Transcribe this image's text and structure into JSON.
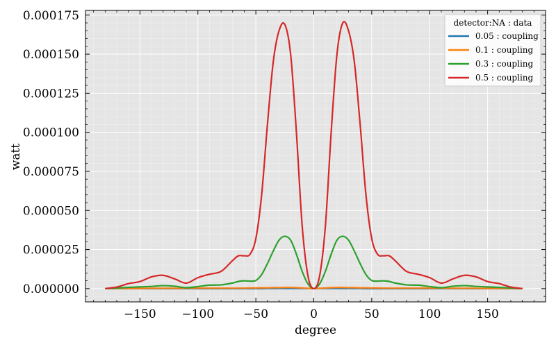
{
  "chart_data": {
    "type": "line",
    "title": "",
    "xlabel": "degree",
    "ylabel": "watt",
    "xlim": [
      -197,
      200
    ],
    "ylim": [
      -8.5e-06,
      0.000178
    ],
    "grid": true,
    "x_ticks": [
      -150,
      -100,
      -50,
      0,
      50,
      100,
      150
    ],
    "x_tick_labels": [
      "−150",
      "−100",
      "−50",
      "0",
      "50",
      "100",
      "150"
    ],
    "y_ticks": [
      0,
      2.5e-05,
      5e-05,
      7.5e-05,
      0.0001,
      0.000125,
      0.00015,
      0.000175
    ],
    "y_tick_labels": [
      "0.000000",
      "0.000025",
      "0.000050",
      "0.000075",
      "0.000100",
      "0.000125",
      "0.000150",
      "0.000175"
    ],
    "legend": {
      "title": "detector:NA : data",
      "position": "top-right"
    },
    "x": [
      -180,
      -170,
      -160,
      -150,
      -140,
      -130,
      -120,
      -110,
      -100,
      -90,
      -80,
      -70,
      -65,
      -60,
      -55,
      -50,
      -45,
      -40,
      -35,
      -30,
      -25,
      -20,
      -15,
      -10,
      -5,
      0,
      5,
      10,
      15,
      20,
      25,
      30,
      35,
      40,
      45,
      50,
      55,
      60,
      65,
      70,
      80,
      90,
      100,
      110,
      120,
      130,
      140,
      150,
      160,
      170,
      180
    ],
    "series": [
      {
        "name": "0.05 : coupling",
        "color": "#1f77b4",
        "values": [
          0,
          0,
          0,
          0,
          0,
          0,
          0,
          0,
          0,
          0,
          0,
          0,
          0,
          0,
          0,
          0,
          0,
          1e-07,
          1e-07,
          1e-07,
          1e-07,
          1e-07,
          1e-07,
          1e-07,
          1e-07,
          0,
          1e-07,
          1e-07,
          1e-07,
          1e-07,
          1e-07,
          1e-07,
          1e-07,
          1e-07,
          0,
          0,
          0,
          0,
          0,
          0,
          0,
          0,
          0,
          0,
          0,
          0,
          0,
          0,
          0,
          0,
          0
        ]
      },
      {
        "name": "0.1 : coupling",
        "color": "#ff7f0e",
        "values": [
          0,
          1e-07,
          1e-07,
          1e-07,
          2e-07,
          2e-07,
          2e-07,
          2e-07,
          3e-07,
          3e-07,
          3e-07,
          3e-07,
          3e-07,
          3e-07,
          4e-07,
          4e-07,
          5e-07,
          5e-07,
          6e-07,
          6e-07,
          7e-07,
          7e-07,
          6e-07,
          4e-07,
          2e-07,
          0,
          2e-07,
          4e-07,
          6e-07,
          7e-07,
          7e-07,
          6e-07,
          6e-07,
          5e-07,
          5e-07,
          4e-07,
          4e-07,
          3e-07,
          3e-07,
          3e-07,
          3e-07,
          3e-07,
          3e-07,
          2e-07,
          2e-07,
          2e-07,
          2e-07,
          1e-07,
          1e-07,
          1e-07,
          0
        ]
      },
      {
        "name": "0.3 : coupling",
        "color": "#2ca02c",
        "values": [
          0,
          4e-07,
          8e-07,
          1.1e-06,
          1.4e-06,
          1.9e-06,
          1.5e-06,
          6e-07,
          1.3e-06,
          2.2e-06,
          2.4e-06,
          3.6e-06,
          4.6e-06,
          5e-06,
          4.8e-06,
          5.2e-06,
          9e-06,
          1.6e-05,
          2.4e-05,
          3.1e-05,
          3.35e-05,
          3.1e-05,
          2.2e-05,
          1.1e-05,
          3e-06,
          0,
          3e-06,
          1.1e-05,
          2.2e-05,
          3.1e-05,
          3.35e-05,
          3.1e-05,
          2.4e-05,
          1.6e-05,
          9e-06,
          5.2e-06,
          4.8e-06,
          5e-06,
          4.6e-06,
          3.6e-06,
          2.4e-06,
          2.2e-06,
          1.3e-06,
          6e-07,
          1.5e-06,
          1.9e-06,
          1.4e-06,
          1.1e-06,
          8e-07,
          4e-07,
          0
        ]
      },
      {
        "name": "0.5 : coupling",
        "color": "#d62728",
        "values": [
          0,
          1e-06,
          3.2e-06,
          4.5e-06,
          7.5e-06,
          8.5e-06,
          6.2e-06,
          3.5e-06,
          7e-06,
          9.2e-06,
          1.1e-05,
          1.8e-05,
          2.1e-05,
          2.1e-05,
          2.2e-05,
          3.2e-05,
          6e-05,
          0.000105,
          0.000145,
          0.000165,
          0.000169,
          0.00015,
          0.0001,
          4e-05,
          8e-06,
          0,
          8e-06,
          4e-05,
          0.0001,
          0.00015,
          0.00017,
          0.000165,
          0.000145,
          0.000105,
          6e-05,
          3.2e-05,
          2.2e-05,
          2.1e-05,
          2.1e-05,
          1.8e-05,
          1.1e-05,
          9.2e-06,
          7e-06,
          3.5e-06,
          6.2e-06,
          8.5e-06,
          7.5e-06,
          4.5e-06,
          3.2e-06,
          1e-06,
          0
        ]
      }
    ]
  }
}
